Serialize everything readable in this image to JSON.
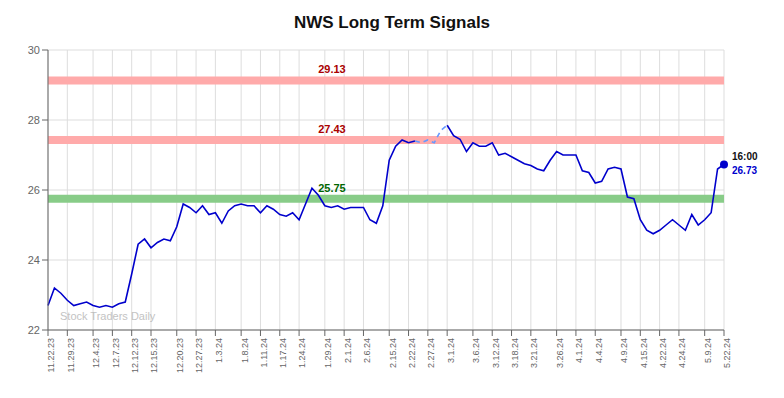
{
  "chart_data": {
    "type": "line",
    "title": "NWS Long Term Signals",
    "categories": [
      "11.22.23",
      null,
      null,
      "11.29.23",
      null,
      null,
      null,
      "12.4.23",
      null,
      null,
      "12.7.23",
      null,
      null,
      "12.12.23",
      null,
      null,
      "12.15.23",
      null,
      null,
      null,
      "12.20.23",
      null,
      null,
      "12.27.23",
      null,
      null,
      "1.3.24",
      null,
      null,
      null,
      "1.8.24",
      null,
      null,
      "1.11.24",
      null,
      null,
      "1.17.24",
      null,
      null,
      "1.24.24",
      null,
      null,
      null,
      "1.29.24",
      null,
      null,
      "2.1.24",
      null,
      null,
      "2.6.24",
      null,
      null,
      null,
      "2.15.24",
      null,
      null,
      "2.22.24",
      null,
      null,
      "2.27.24",
      null,
      null,
      "3.1.24",
      null,
      null,
      null,
      "3.6.24",
      null,
      null,
      "3.12.24",
      null,
      null,
      "3.18.24",
      null,
      null,
      "3.21.24",
      null,
      null,
      null,
      "3.26.24",
      null,
      null,
      "4.1.24",
      null,
      null,
      "4.4.24",
      null,
      null,
      null,
      "4.9.24",
      null,
      null,
      "4.15.24",
      null,
      null,
      "4.22.24",
      null,
      null,
      "4.24.24",
      null,
      null,
      null,
      "5.9.24",
      null,
      null,
      "5.22.24"
    ],
    "series": [
      {
        "color": "#0000cc",
        "line_style": "solid",
        "values": [
          22.7,
          23.2,
          23.05,
          22.85,
          22.7,
          22.75,
          22.8,
          22.7,
          22.65,
          22.7,
          22.65,
          22.75,
          22.8,
          23.6,
          24.45,
          24.6,
          24.35,
          24.5,
          24.6,
          24.55,
          24.95,
          25.6,
          25.5,
          25.35,
          25.55,
          25.3,
          25.35,
          25.05,
          25.4,
          25.55,
          25.6,
          25.55,
          25.55,
          25.35,
          25.55,
          25.45,
          25.3,
          25.25,
          25.35,
          25.15,
          25.6,
          26.05,
          25.85,
          25.55,
          25.5,
          25.55,
          25.45,
          25.5,
          25.5,
          25.5,
          25.15,
          25.05,
          25.55,
          26.85,
          27.25,
          27.43,
          27.35,
          27.4,
          null,
          null,
          null,
          null,
          27.85,
          27.55,
          27.45,
          27.1,
          27.35,
          27.25,
          27.25,
          27.35,
          27.0,
          27.05,
          26.95,
          26.85,
          26.75,
          26.7,
          26.6,
          26.55,
          26.85,
          27.1,
          27.0,
          27.0,
          27.0,
          26.55,
          26.5,
          26.2,
          26.25,
          26.6,
          26.65,
          26.6,
          25.8,
          25.75,
          25.15,
          24.85,
          24.75,
          24.85,
          25.0,
          25.15,
          25.0,
          24.85,
          25.3,
          25.0,
          25.15,
          25.35,
          26.6,
          26.73
        ]
      },
      {
        "color": "#6699ff",
        "line_style": "dashed",
        "values": [
          null,
          null,
          null,
          null,
          null,
          null,
          null,
          null,
          null,
          null,
          null,
          null,
          null,
          null,
          null,
          null,
          null,
          null,
          null,
          null,
          null,
          null,
          null,
          null,
          null,
          null,
          null,
          null,
          null,
          null,
          null,
          null,
          null,
          null,
          null,
          null,
          null,
          null,
          null,
          null,
          null,
          null,
          null,
          null,
          null,
          null,
          null,
          null,
          null,
          null,
          null,
          null,
          null,
          null,
          null,
          null,
          null,
          27.4,
          27.35,
          27.43,
          27.35,
          27.7,
          27.85,
          null,
          null,
          null,
          null,
          null,
          null,
          null,
          null,
          null,
          null,
          null,
          null,
          null,
          null,
          null,
          null,
          null,
          null,
          null,
          null,
          null,
          null,
          null,
          null,
          null,
          null,
          null,
          null,
          null,
          null,
          null,
          null,
          null,
          null,
          null,
          null,
          null,
          null,
          null,
          null,
          null,
          null,
          null
        ]
      }
    ],
    "reference_lines": [
      {
        "y": 29.13,
        "label": "29.13",
        "color": "#ffaaaa",
        "label_color": "#aa0000"
      },
      {
        "y": 27.43,
        "label": "27.43",
        "color": "#ffaaaa",
        "label_color": "#aa0000"
      },
      {
        "y": 25.75,
        "label": "25.75",
        "color": "#88cc88",
        "label_color": "#006600"
      }
    ],
    "last_point_label": [
      "16:00",
      "26.73"
    ],
    "watermark": "Stock Traders Daily",
    "ylim": [
      22,
      30
    ],
    "yticks": [
      22,
      24,
      26,
      28,
      30
    ],
    "grid": true
  }
}
